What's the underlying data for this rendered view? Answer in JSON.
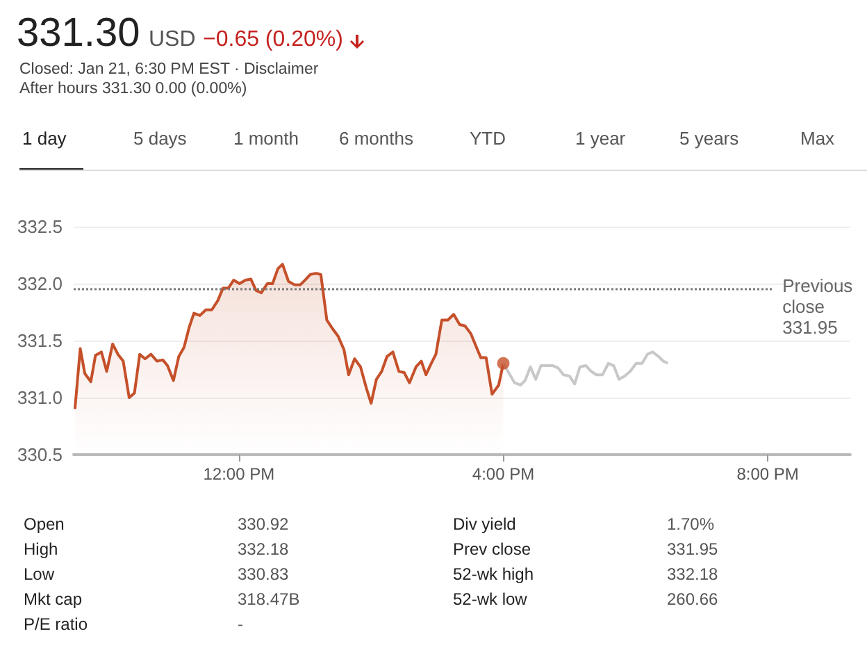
{
  "chart_data": {
    "type": "area",
    "title": "331.30",
    "subtitle": "USD",
    "annotations": [
      "−0.65 (0.20%)",
      "Closed: Jan 21, 6:30 PM EST · Disclaimer",
      "After hours 331.30 0.00 (0.00%)",
      "1 day",
      "5 days",
      "1 month",
      "6 months",
      "YTD",
      "1 year",
      "5 years",
      "Max",
      "Open",
      "330.92",
      "Div yield",
      "1.70%",
      "High",
      "332.18",
      "Prev close",
      "331.95",
      "Low",
      "330.83",
      "52-wk high",
      "332.18",
      "Mkt cap",
      "318.47B",
      "52-wk low",
      "260.66",
      "P/E ratio",
      "-"
    ],
    "series": [
      {
        "color": "#c5502a",
        "x": [
          9.52,
          9.6,
          9.67,
          9.76,
          9.83,
          9.92,
          10.0,
          10.09,
          10.17,
          10.25,
          10.34,
          10.42,
          10.5,
          10.58,
          10.67,
          10.76,
          10.85,
          10.92,
          11.01,
          11.09,
          11.17,
          11.25,
          11.32,
          11.41,
          11.5,
          11.59,
          11.68,
          11.76,
          11.84,
          11.92,
          12.01,
          12.1,
          12.18,
          12.26,
          12.34,
          12.43,
          12.51,
          12.59,
          12.66,
          12.75,
          12.84,
          12.93,
          13.0,
          13.08,
          13.17,
          13.24,
          13.33,
          13.41,
          13.5,
          13.59,
          13.66,
          13.75,
          13.84,
          13.93,
          14.0,
          14.08,
          14.16,
          14.24,
          14.33,
          14.42,
          14.5,
          14.58,
          14.68,
          14.76,
          14.83,
          14.91,
          14.98,
          15.07,
          15.16,
          15.25,
          15.34,
          15.42,
          15.51,
          15.58,
          15.66,
          15.74,
          15.83,
          15.93,
          16.0
        ],
        "values": [
          330.9,
          331.43,
          331.21,
          331.14,
          331.37,
          331.4,
          331.23,
          331.47,
          331.38,
          331.32,
          331.0,
          331.04,
          331.38,
          331.34,
          331.38,
          331.32,
          331.33,
          331.28,
          331.15,
          331.36,
          331.44,
          331.62,
          331.74,
          331.72,
          331.77,
          331.77,
          331.85,
          331.96,
          331.96,
          332.03,
          332.0,
          332.03,
          332.04,
          331.94,
          331.92,
          332.0,
          332.0,
          332.13,
          332.17,
          332.02,
          331.99,
          331.99,
          332.03,
          332.08,
          332.09,
          332.08,
          331.68,
          331.61,
          331.54,
          331.42,
          331.2,
          331.34,
          331.27,
          331.08,
          330.95,
          331.16,
          331.23,
          331.36,
          331.4,
          331.23,
          331.22,
          331.13,
          331.27,
          331.32,
          331.2,
          331.3,
          331.38,
          331.68,
          331.68,
          331.73,
          331.64,
          331.63,
          331.56,
          331.46,
          331.35,
          331.35,
          331.03,
          331.11,
          331.3
        ]
      },
      {
        "type": "line",
        "color": "#c8c8c8",
        "x": [
          16.0,
          16.09,
          16.17,
          16.26,
          16.33,
          16.41,
          16.49,
          16.57,
          16.67,
          16.75,
          16.83,
          16.91,
          17.0,
          17.08,
          17.16,
          17.25,
          17.33,
          17.41,
          17.5,
          17.59,
          17.67,
          17.75,
          17.84,
          17.92,
          18.01,
          18.1,
          18.18,
          18.26,
          18.35,
          18.42,
          18.49
        ],
        "values": [
          331.3,
          331.21,
          331.13,
          331.11,
          331.15,
          331.27,
          331.16,
          331.28,
          331.28,
          331.28,
          331.26,
          331.2,
          331.19,
          331.12,
          331.27,
          331.28,
          331.23,
          331.2,
          331.2,
          331.3,
          331.28,
          331.16,
          331.19,
          331.23,
          331.3,
          331.3,
          331.38,
          331.4,
          331.36,
          331.32,
          331.3
        ]
      },
      {
        "type": "scatter",
        "color": "#c5502a",
        "marker": "circle",
        "x": [
          16.0
        ],
        "values": [
          331.3
        ]
      }
    ],
    "xlim": [
      9.5,
      21.25
    ],
    "xticks": [
      {
        "value": 12,
        "label": "12:00 PM"
      },
      {
        "value": 16,
        "label": "4:00 PM"
      },
      {
        "value": 20,
        "label": "8:00 PM"
      }
    ],
    "ylim": [
      330.5,
      332.5
    ],
    "yticks": [
      {
        "value": 330.5,
        "label": "330.5"
      },
      {
        "value": 331,
        "label": "331.0"
      },
      {
        "value": 331.5,
        "label": "331.5"
      },
      {
        "value": 332,
        "label": "332.0"
      },
      {
        "value": 332.5,
        "label": "332.5"
      }
    ],
    "ref_lines": [
      {
        "axis": "y",
        "value": 331.95,
        "label": "Previous close",
        "line_style": "dotted",
        "color": "#777777"
      }
    ],
    "grid": "y",
    "marker": "none"
  }
}
